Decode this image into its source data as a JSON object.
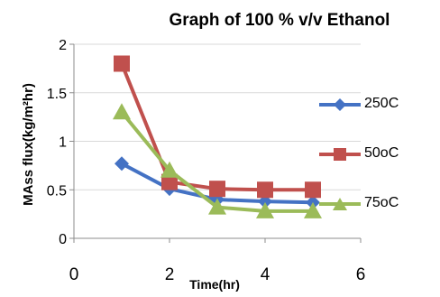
{
  "chart_data": {
    "type": "line",
    "title": "Graph of 100 % v/v Ethanol",
    "xlabel": "Time(hr)",
    "ylabel": "MAss flux(kg/m²hr)",
    "xlim": [
      0,
      6
    ],
    "ylim": [
      0,
      2
    ],
    "x_ticks": [
      "0",
      "2",
      "4",
      "6"
    ],
    "y_ticks": [
      "0",
      "0.5",
      "1",
      "1.5",
      "2"
    ],
    "grid": "horizontal",
    "legend_position": "right",
    "series": [
      {
        "name": "250C",
        "color": "#4472C4",
        "marker": "diamond",
        "x": [
          1,
          2,
          3,
          4,
          5
        ],
        "y": [
          0.77,
          0.51,
          0.4,
          0.38,
          0.37
        ]
      },
      {
        "name": "50oC",
        "color": "#C0504D",
        "marker": "square",
        "x": [
          1,
          2,
          3,
          4,
          5
        ],
        "y": [
          1.8,
          0.58,
          0.51,
          0.5,
          0.5
        ]
      },
      {
        "name": "75oC",
        "color": "#9BBB59",
        "marker": "triangle",
        "x": [
          1,
          2,
          3,
          4,
          5
        ],
        "y": [
          1.3,
          0.7,
          0.32,
          0.28,
          0.28
        ]
      }
    ]
  }
}
